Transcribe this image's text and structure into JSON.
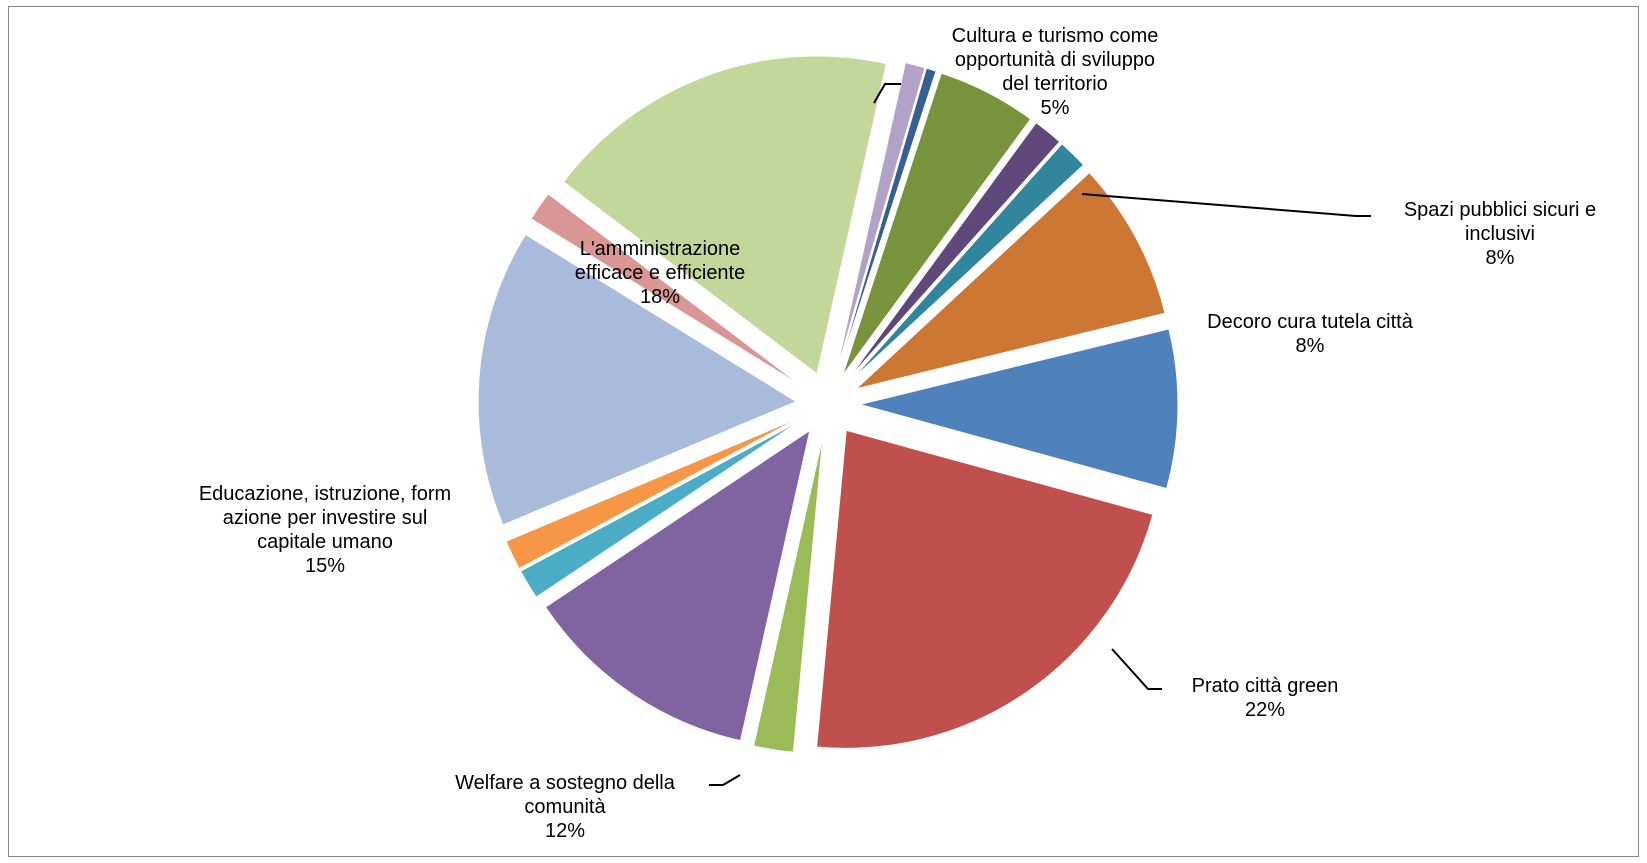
{
  "chart_data": {
    "type": "pie",
    "exploded": true,
    "slices": [
      {
        "label": "Decoro cura tutela città",
        "value": 8,
        "color": "#4F81BD"
      },
      {
        "label": "Prato città green",
        "value": 22,
        "color": "#C0504D"
      },
      {
        "label": "",
        "value": 2,
        "color": "#9BBB59"
      },
      {
        "label": "Welfare a sostegno della comunità",
        "value": 12,
        "color": "#8064A2"
      },
      {
        "label": "",
        "value": 1.5,
        "color": "#4BACC6"
      },
      {
        "label": "",
        "value": 1.5,
        "color": "#F79646"
      },
      {
        "label": "Educazione, istruzione, formazione per investire sul capitale umano",
        "value": 15,
        "color": "#A9BBDA"
      },
      {
        "label": "",
        "value": 1.5,
        "color": "#D99694"
      },
      {
        "label": "L'amministrazione efficace e efficiente",
        "value": 18,
        "color": "#C4D79B"
      },
      {
        "label": "",
        "value": 1,
        "color": "#B3A2C7"
      },
      {
        "label": "",
        "value": 0.5,
        "color": "#376092"
      },
      {
        "label": "Cultura e turismo come opportunità di sviluppo del territorio",
        "value": 5,
        "color": "#77933C"
      },
      {
        "label": "",
        "value": 1.5,
        "color": "#5F497A"
      },
      {
        "label": "",
        "value": 1.5,
        "color": "#31859C"
      },
      {
        "label": "Spazi pubblici sicuri e inclusivi",
        "value": 8,
        "color": "#CC7733"
      }
    ],
    "data_labels": [
      {
        "id": "decoro",
        "lines": [
          "Decoro cura tutela città"
        ],
        "pct": "8%"
      },
      {
        "id": "prato",
        "lines": [
          "Prato città green"
        ],
        "pct": "22%"
      },
      {
        "id": "welfare",
        "lines": [
          "Welfare a sostegno della",
          "comunità"
        ],
        "pct": "12%"
      },
      {
        "id": "educazione",
        "lines": [
          "Educazione, istruzione, form",
          "azione per investire sul",
          "capitale umano"
        ],
        "pct": "15%"
      },
      {
        "id": "amministrazione",
        "lines": [
          "L'amministrazione",
          "efficace e efficiente"
        ],
        "pct": "18%"
      },
      {
        "id": "cultura",
        "lines": [
          "Cultura e turismo come",
          "opportunità di sviluppo",
          "del territorio"
        ],
        "pct": "5%"
      },
      {
        "id": "spazi",
        "lines": [
          "Spazi pubblici sicuri e",
          "inclusivi"
        ],
        "pct": "8%"
      }
    ],
    "title": "",
    "legend": "none"
  }
}
